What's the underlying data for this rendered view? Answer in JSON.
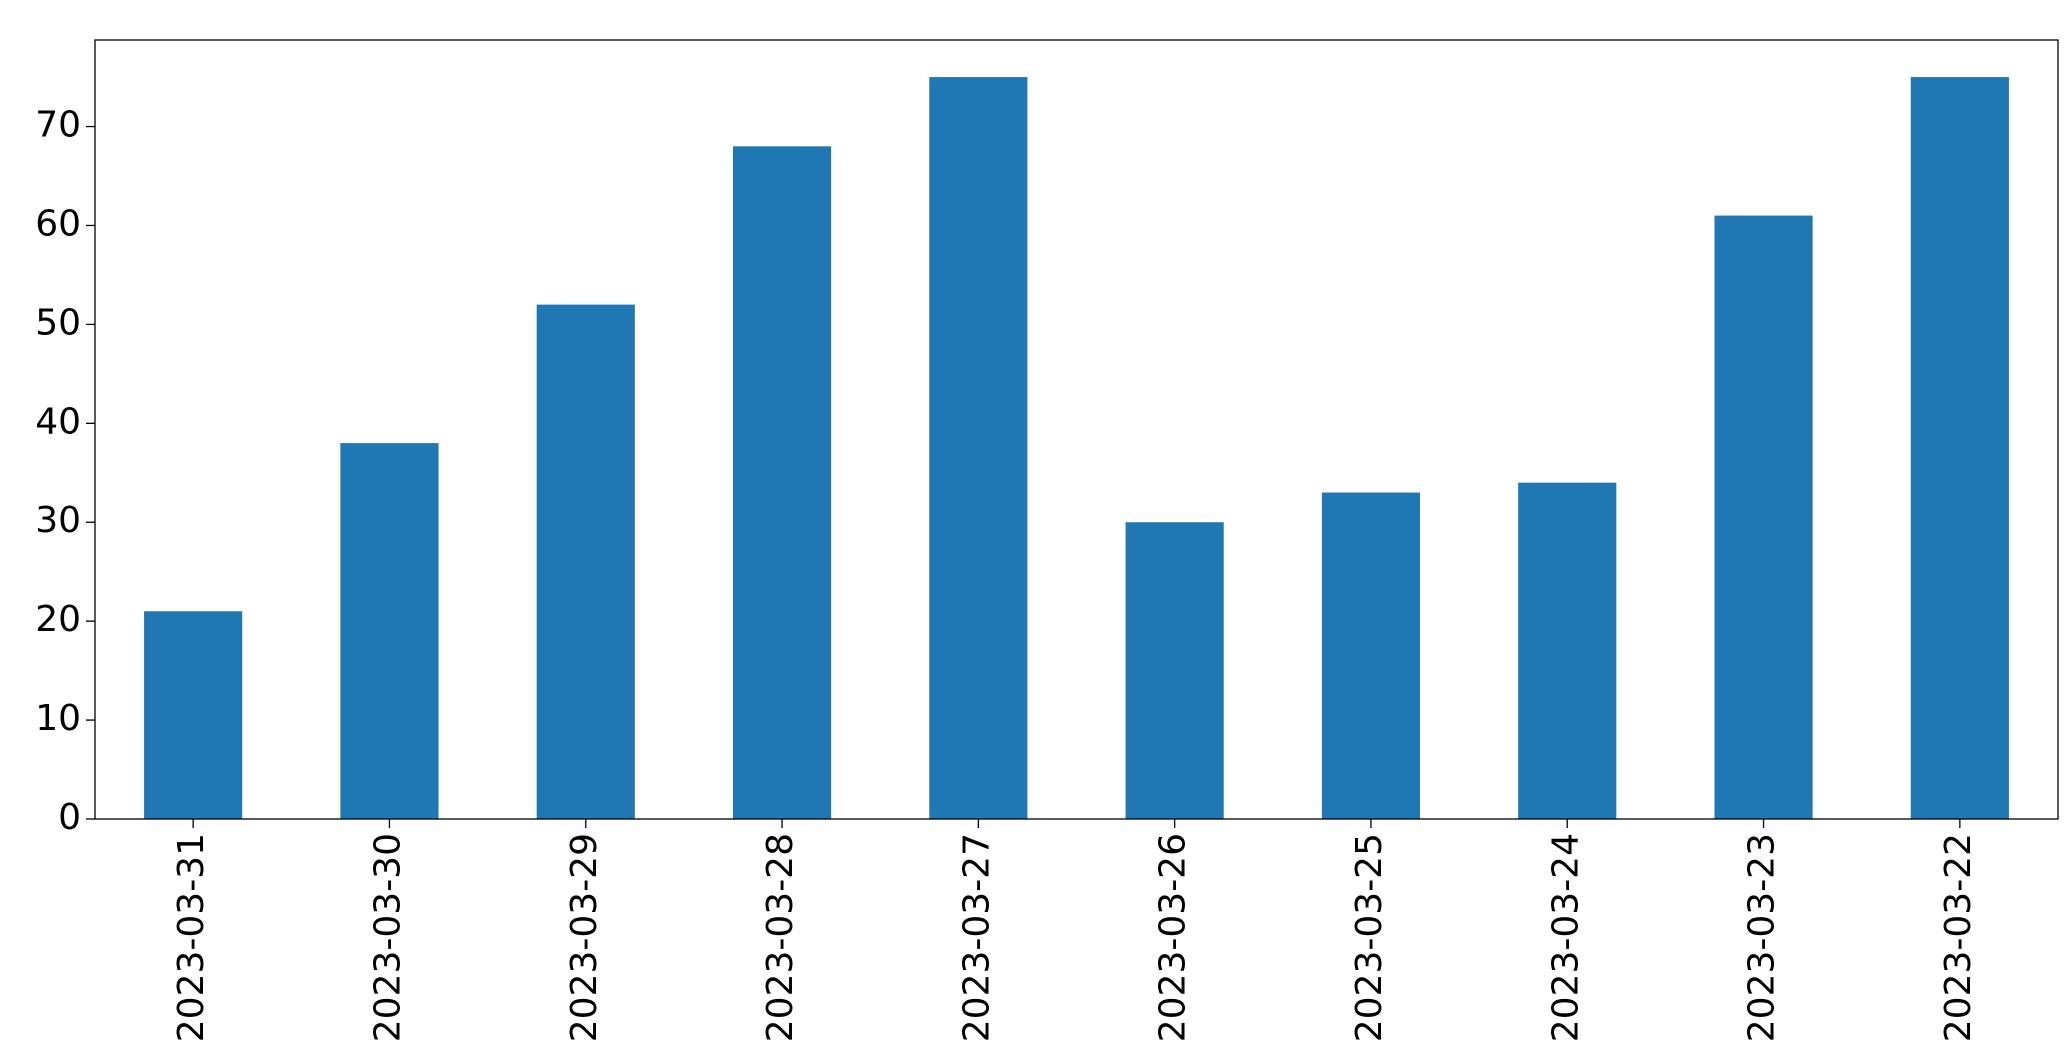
{
  "chart_data": {
    "type": "bar",
    "categories": [
      "2023-03-31",
      "2023-03-30",
      "2023-03-29",
      "2023-03-28",
      "2023-03-27",
      "2023-03-26",
      "2023-03-25",
      "2023-03-24",
      "2023-03-23",
      "2023-03-22"
    ],
    "values": [
      21,
      38,
      52,
      68,
      75,
      30,
      33,
      34,
      61,
      75
    ],
    "color": "#1f77b4",
    "ylim": [
      0,
      78.75
    ],
    "yticks": [
      0,
      10,
      20,
      30,
      40,
      50,
      60,
      70
    ],
    "grid": false
  }
}
